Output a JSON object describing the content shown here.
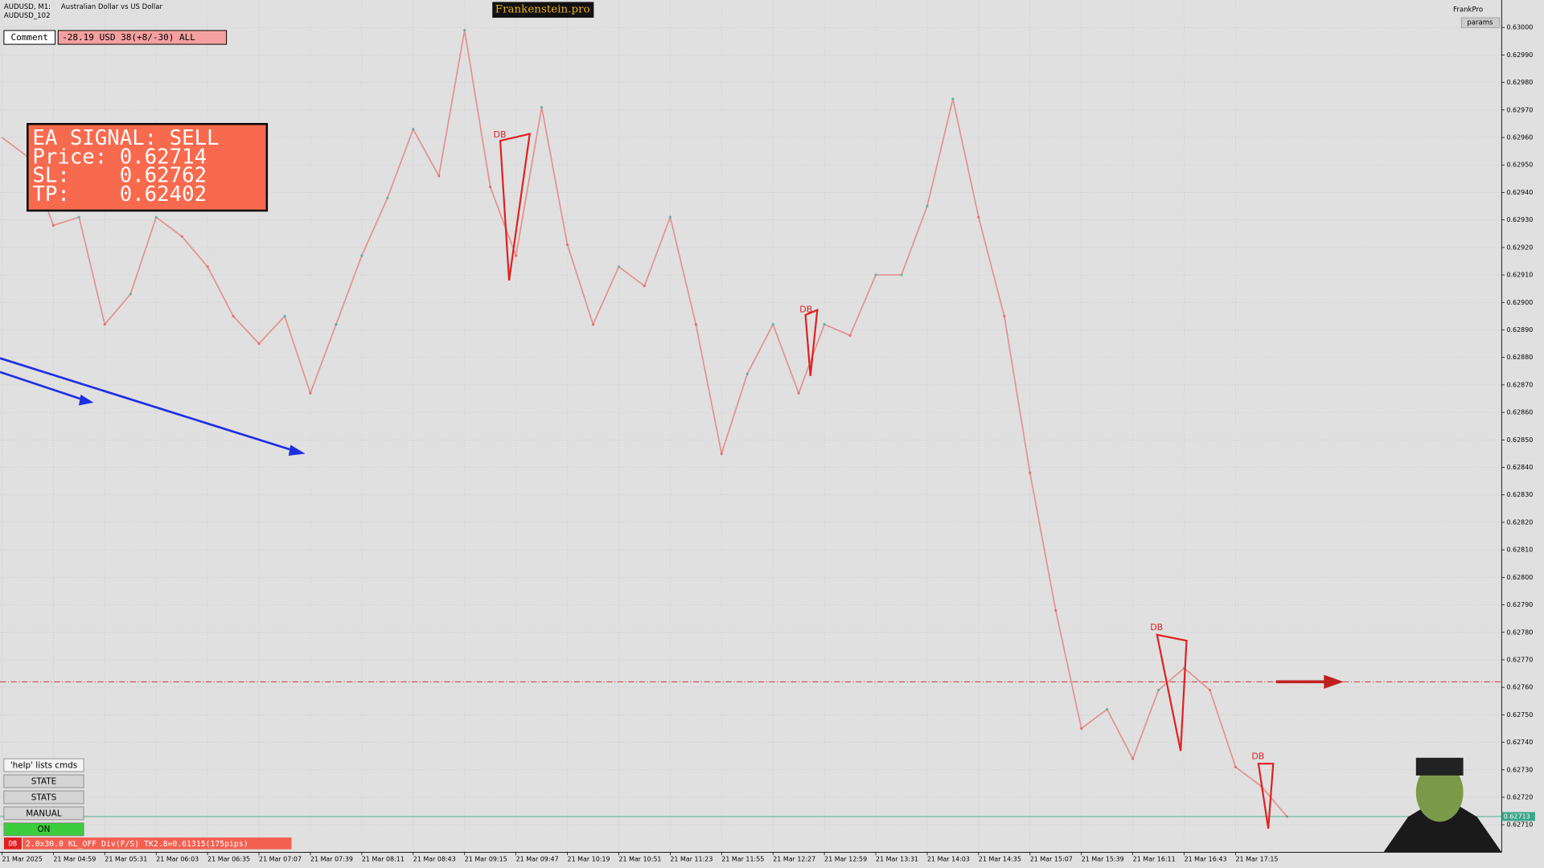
{
  "header": {
    "symbol": "AUDUSD, M1:",
    "description": "Australian Dollar vs US Dollar",
    "subsymbol": "AUDUSD_102",
    "brand": "Frankenstein.pro",
    "profile": "FrankPro",
    "params": "params"
  },
  "comment": {
    "label": "Comment",
    "value": "-28.19 USD 38(+8/-30) ALL"
  },
  "signal": {
    "lines": [
      "EA SIGNAL: SELL",
      "Price: 0.62714",
      "SL:    0.62762",
      "TP:    0.62402"
    ]
  },
  "buttons": [
    "'help' lists cmds",
    "STATE",
    "STATS",
    "MANUAL",
    "ON"
  ],
  "status": {
    "tag": "DB",
    "text": "2.0x30.0 KL_OFF Div(F/S) TK2.8=0.61315(175pips)"
  },
  "chart": {
    "ylim": [
      0.627,
      0.6301
    ],
    "yticks": [
      {
        "value": 0.63,
        "label": "0.63000"
      },
      {
        "value": 0.6299,
        "label": "0.62990"
      },
      {
        "value": 0.6298,
        "label": "0.62980"
      },
      {
        "value": 0.6297,
        "label": "0.62970"
      },
      {
        "value": 0.6296,
        "label": "0.62960"
      },
      {
        "value": 0.6295,
        "label": "0.62950"
      },
      {
        "value": 0.6294,
        "label": "0.62940"
      },
      {
        "value": 0.6293,
        "label": "0.62930"
      },
      {
        "value": 0.6292,
        "label": "0.62920"
      },
      {
        "value": 0.6291,
        "label": "0.62910"
      },
      {
        "value": 0.629,
        "label": "0.62900"
      },
      {
        "value": 0.6289,
        "label": "0.62890"
      },
      {
        "value": 0.6288,
        "label": "0.62880"
      },
      {
        "value": 0.6287,
        "label": "0.62870"
      },
      {
        "value": 0.6286,
        "label": "0.62860"
      },
      {
        "value": 0.6285,
        "label": "0.62850"
      },
      {
        "value": 0.6284,
        "label": "0.62840"
      },
      {
        "value": 0.6283,
        "label": "0.62830"
      },
      {
        "value": 0.6282,
        "label": "0.62820"
      },
      {
        "value": 0.6281,
        "label": "0.62810"
      },
      {
        "value": 0.628,
        "label": "0.62800"
      },
      {
        "value": 0.6279,
        "label": "0.62790"
      },
      {
        "value": 0.6278,
        "label": "0.62780"
      },
      {
        "value": 0.6277,
        "label": "0.62770"
      },
      {
        "value": 0.6276,
        "label": "0.62760"
      },
      {
        "value": 0.6275,
        "label": "0.62750"
      },
      {
        "value": 0.6274,
        "label": "0.62740"
      },
      {
        "value": 0.6273,
        "label": "0.62730"
      },
      {
        "value": 0.6272,
        "label": "0.62720"
      },
      {
        "value": 0.6271,
        "label": "0.62710"
      }
    ],
    "times": [
      "21 Mar 2025",
      "21 Mar 04:59",
      "21 Mar 05:31",
      "21 Mar 06:03",
      "21 Mar 06:35",
      "21 Mar 07:07",
      "21 Mar 07:39",
      "21 Mar 08:11",
      "21 Mar 08:43",
      "21 Mar 09:15",
      "21 Mar 09:47",
      "21 Mar 10:19",
      "21 Mar 10:51",
      "21 Mar 11:23",
      "21 Mar 11:55",
      "21 Mar 12:27",
      "21 Mar 12:59",
      "21 Mar 13:31",
      "21 Mar 14:03",
      "21 Mar 14:35",
      "21 Mar 15:07",
      "21 Mar 15:39",
      "21 Mar 16:11",
      "21 Mar 16:43",
      "21 Mar 17:15"
    ],
    "price": [
      0.6296,
      0.62953,
      0.62928,
      0.62931,
      0.62892,
      0.62903,
      0.62931,
      0.62924,
      0.62913,
      0.62895,
      0.62885,
      0.62895,
      0.62867,
      0.62892,
      0.62917,
      0.62938,
      0.62963,
      0.62946,
      0.62999,
      0.62942,
      0.62917,
      0.62971,
      0.62921,
      0.62892,
      0.62913,
      0.62906,
      0.62931,
      0.62892,
      0.62845,
      0.62874,
      0.62892,
      0.62867,
      0.62892,
      0.62888,
      0.6291,
      0.6291,
      0.62935,
      0.62974,
      0.62931,
      0.62895,
      0.62838,
      0.62788,
      0.62745,
      0.62752,
      0.62734,
      0.62759,
      0.62767,
      0.62759,
      0.62731,
      0.62724,
      0.62713
    ],
    "current": {
      "value": 0.62713,
      "label": "0.62713"
    },
    "stop_level": 0.62762,
    "patterns": [
      "DB",
      "DB",
      "DB",
      "DB"
    ]
  }
}
